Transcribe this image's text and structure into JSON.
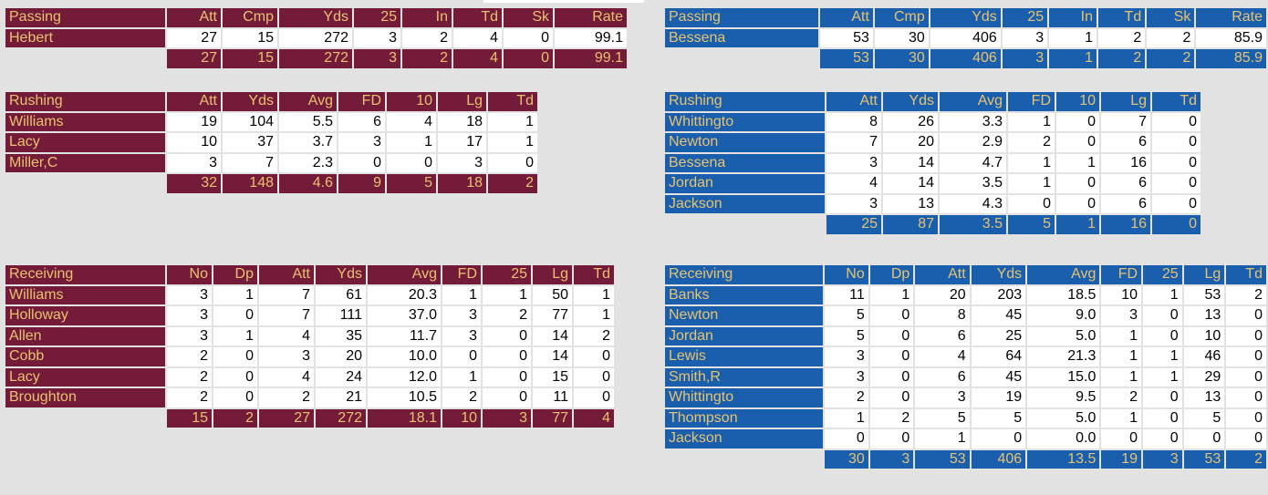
{
  "colors": {
    "home": "#741b39",
    "away": "#1a5fad",
    "header_text": "#e8c36f",
    "background": "#e2e2e2"
  },
  "home": {
    "passing": {
      "title": "Passing",
      "columns": [
        "Att",
        "Cmp",
        "Yds",
        "25",
        "In",
        "Td",
        "Sk",
        "Rate"
      ],
      "rows": [
        {
          "name": "Hebert",
          "values": [
            "27",
            "15",
            "272",
            "3",
            "2",
            "4",
            "0",
            "99.1"
          ]
        }
      ],
      "totals": [
        "27",
        "15",
        "272",
        "3",
        "2",
        "4",
        "0",
        "99.1"
      ]
    },
    "rushing": {
      "title": "Rushing",
      "columns": [
        "Att",
        "Yds",
        "Avg",
        "FD",
        "10",
        "Lg",
        "Td"
      ],
      "rows": [
        {
          "name": "Williams",
          "values": [
            "19",
            "104",
            "5.5",
            "6",
            "4",
            "18",
            "1"
          ]
        },
        {
          "name": "Lacy",
          "values": [
            "10",
            "37",
            "3.7",
            "3",
            "1",
            "17",
            "1"
          ]
        },
        {
          "name": "Miller,C",
          "values": [
            "3",
            "7",
            "2.3",
            "0",
            "0",
            "3",
            "0"
          ]
        }
      ],
      "totals": [
        "32",
        "148",
        "4.6",
        "9",
        "5",
        "18",
        "2"
      ]
    },
    "receiving": {
      "title": "Receiving",
      "columns": [
        "No",
        "Dp",
        "Att",
        "Yds",
        "Avg",
        "FD",
        "25",
        "Lg",
        "Td"
      ],
      "rows": [
        {
          "name": "Williams",
          "values": [
            "3",
            "1",
            "7",
            "61",
            "20.3",
            "1",
            "1",
            "50",
            "1"
          ]
        },
        {
          "name": "Holloway",
          "values": [
            "3",
            "0",
            "7",
            "111",
            "37.0",
            "3",
            "2",
            "77",
            "1"
          ]
        },
        {
          "name": "Allen",
          "values": [
            "3",
            "1",
            "4",
            "35",
            "11.7",
            "3",
            "0",
            "14",
            "2"
          ]
        },
        {
          "name": "Cobb",
          "values": [
            "2",
            "0",
            "3",
            "20",
            "10.0",
            "0",
            "0",
            "14",
            "0"
          ]
        },
        {
          "name": "Lacy",
          "values": [
            "2",
            "0",
            "4",
            "24",
            "12.0",
            "1",
            "0",
            "15",
            "0"
          ]
        },
        {
          "name": "Broughton",
          "values": [
            "2",
            "0",
            "2",
            "21",
            "10.5",
            "2",
            "0",
            "11",
            "0"
          ]
        }
      ],
      "totals": [
        "15",
        "2",
        "27",
        "272",
        "18.1",
        "10",
        "3",
        "77",
        "4"
      ]
    }
  },
  "away": {
    "passing": {
      "title": "Passing",
      "columns": [
        "Att",
        "Cmp",
        "Yds",
        "25",
        "In",
        "Td",
        "Sk",
        "Rate"
      ],
      "rows": [
        {
          "name": "Bessena",
          "values": [
            "53",
            "30",
            "406",
            "3",
            "1",
            "2",
            "2",
            "85.9"
          ]
        }
      ],
      "totals": [
        "53",
        "30",
        "406",
        "3",
        "1",
        "2",
        "2",
        "85.9"
      ]
    },
    "rushing": {
      "title": "Rushing",
      "columns": [
        "Att",
        "Yds",
        "Avg",
        "FD",
        "10",
        "Lg",
        "Td"
      ],
      "rows": [
        {
          "name": "Whittingto",
          "values": [
            "8",
            "26",
            "3.3",
            "1",
            "0",
            "7",
            "0"
          ]
        },
        {
          "name": "Newton",
          "values": [
            "7",
            "20",
            "2.9",
            "2",
            "0",
            "6",
            "0"
          ]
        },
        {
          "name": "Bessena",
          "values": [
            "3",
            "14",
            "4.7",
            "1",
            "1",
            "16",
            "0"
          ]
        },
        {
          "name": "Jordan",
          "values": [
            "4",
            "14",
            "3.5",
            "1",
            "0",
            "6",
            "0"
          ]
        },
        {
          "name": "Jackson",
          "values": [
            "3",
            "13",
            "4.3",
            "0",
            "0",
            "6",
            "0"
          ]
        }
      ],
      "totals": [
        "25",
        "87",
        "3.5",
        "5",
        "1",
        "16",
        "0"
      ]
    },
    "receiving": {
      "title": "Receiving",
      "columns": [
        "No",
        "Dp",
        "Att",
        "Yds",
        "Avg",
        "FD",
        "25",
        "Lg",
        "Td"
      ],
      "rows": [
        {
          "name": "Banks",
          "values": [
            "11",
            "1",
            "20",
            "203",
            "18.5",
            "10",
            "1",
            "53",
            "2"
          ]
        },
        {
          "name": "Newton",
          "values": [
            "5",
            "0",
            "8",
            "45",
            "9.0",
            "3",
            "0",
            "13",
            "0"
          ]
        },
        {
          "name": "Jordan",
          "values": [
            "5",
            "0",
            "6",
            "25",
            "5.0",
            "1",
            "0",
            "10",
            "0"
          ]
        },
        {
          "name": "Lewis",
          "values": [
            "3",
            "0",
            "4",
            "64",
            "21.3",
            "1",
            "1",
            "46",
            "0"
          ]
        },
        {
          "name": "Smith,R",
          "values": [
            "3",
            "0",
            "6",
            "45",
            "15.0",
            "1",
            "1",
            "29",
            "0"
          ]
        },
        {
          "name": "Whittingto",
          "values": [
            "2",
            "0",
            "3",
            "19",
            "9.5",
            "2",
            "0",
            "13",
            "0"
          ]
        },
        {
          "name": "Thompson",
          "values": [
            "1",
            "2",
            "5",
            "5",
            "5.0",
            "1",
            "0",
            "5",
            "0"
          ]
        },
        {
          "name": "Jackson",
          "values": [
            "0",
            "0",
            "1",
            "0",
            "0.0",
            "0",
            "0",
            "0",
            "0"
          ]
        }
      ],
      "totals": [
        "30",
        "3",
        "53",
        "406",
        "13.5",
        "19",
        "3",
        "53",
        "2"
      ]
    }
  }
}
